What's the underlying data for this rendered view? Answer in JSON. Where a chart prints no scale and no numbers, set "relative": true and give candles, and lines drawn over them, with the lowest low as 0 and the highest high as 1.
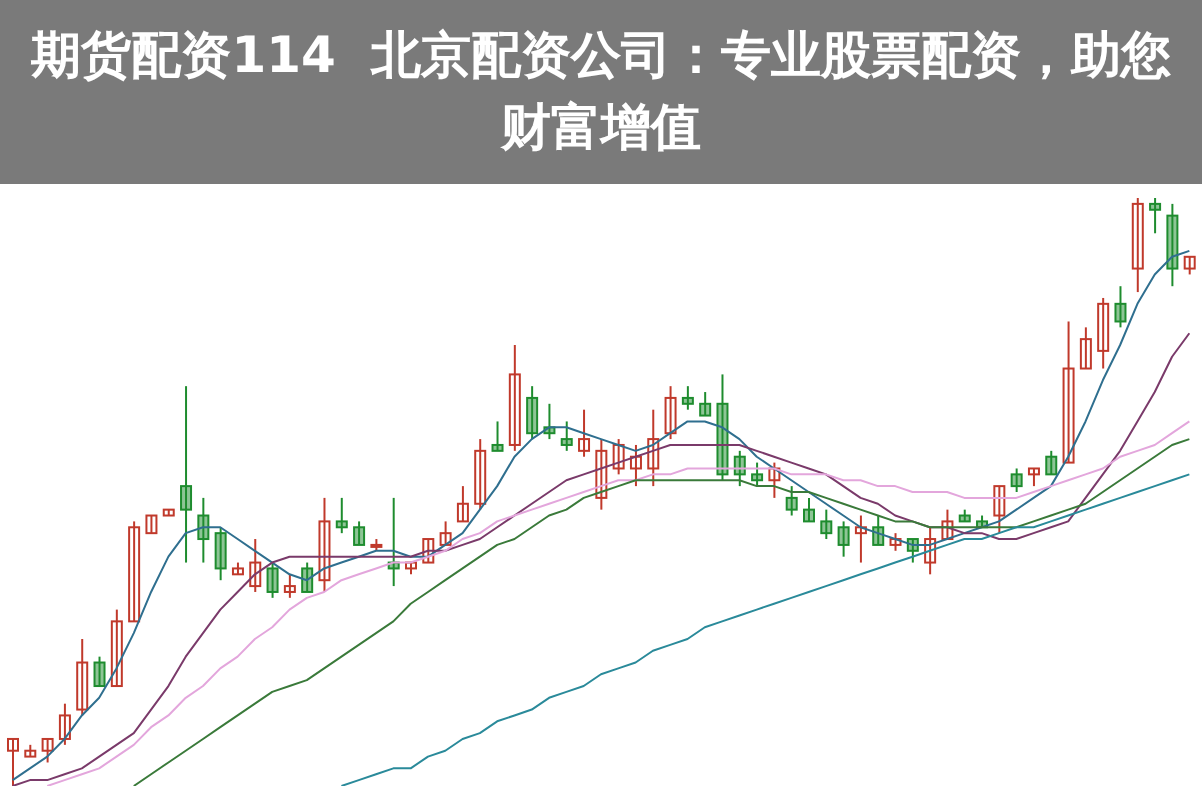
{
  "chart_data": {
    "type": "candlestick",
    "title": "期货配资114  北京配资公司：专业股票配资，助您财富增值",
    "relative": true,
    "marker": "none",
    "categories": [
      null,
      null,
      null,
      null,
      null,
      null,
      null,
      null,
      null,
      null,
      null,
      null,
      null,
      null,
      null,
      null,
      null,
      null,
      null,
      null,
      null,
      null,
      null,
      null,
      null,
      null,
      null,
      null,
      null,
      null,
      null,
      null,
      null,
      null,
      null,
      null,
      null,
      null,
      null,
      null,
      null,
      null,
      null,
      null,
      null,
      null,
      null,
      null,
      null,
      null,
      null,
      null,
      null,
      null,
      null,
      null,
      null,
      null,
      null,
      null,
      null,
      null,
      null,
      null,
      null,
      null,
      null,
      null,
      null
    ],
    "ohlc": [
      [
        0.06,
        0.08,
        0,
        0.08
      ],
      [
        0.05,
        0.07,
        0.05,
        0.06
      ],
      [
        0.06,
        0.08,
        0.04,
        0.08
      ],
      [
        0.08,
        0.14,
        0.07,
        0.12
      ],
      [
        0.13,
        0.25,
        0.12,
        0.21
      ],
      [
        0.21,
        0.22,
        0.17,
        0.17
      ],
      [
        0.17,
        0.3,
        0.17,
        0.28
      ],
      [
        0.28,
        0.45,
        0.28,
        0.44
      ],
      [
        0.43,
        0.46,
        0.43,
        0.46
      ],
      [
        0.46,
        0.47,
        0.46,
        0.47
      ],
      [
        0.51,
        0.68,
        0.38,
        0.47
      ],
      [
        0.46,
        0.49,
        0.38,
        0.42
      ],
      [
        0.43,
        0.44,
        0.35,
        0.37
      ],
      [
        0.36,
        0.38,
        0.36,
        0.37
      ],
      [
        0.34,
        0.42,
        0.33,
        0.38
      ],
      [
        0.37,
        0.38,
        0.32,
        0.33
      ],
      [
        0.33,
        0.36,
        0.32,
        0.34
      ],
      [
        0.37,
        0.38,
        0.33,
        0.33
      ],
      [
        0.35,
        0.49,
        0.33,
        0.45
      ],
      [
        0.45,
        0.49,
        0.43,
        0.44
      ],
      [
        0.44,
        0.45,
        0.41,
        0.41
      ],
      [
        0.41,
        0.42,
        0.4,
        0.41
      ],
      [
        0.38,
        0.49,
        0.34,
        0.37
      ],
      [
        0.37,
        0.38,
        0.36,
        0.38
      ],
      [
        0.38,
        0.42,
        0.38,
        0.42
      ],
      [
        0.41,
        0.45,
        0.41,
        0.43
      ],
      [
        0.45,
        0.51,
        0.45,
        0.48
      ],
      [
        0.48,
        0.59,
        0.47,
        0.57
      ],
      [
        0.58,
        0.62,
        0.57,
        0.57
      ],
      [
        0.58,
        0.75,
        0.57,
        0.7
      ],
      [
        0.66,
        0.68,
        0.59,
        0.6
      ],
      [
        0.61,
        0.65,
        0.59,
        0.6
      ],
      [
        0.59,
        0.62,
        0.57,
        0.58
      ],
      [
        0.57,
        0.64,
        0.56,
        0.59
      ],
      [
        0.49,
        0.59,
        0.47,
        0.57
      ],
      [
        0.54,
        0.59,
        0.53,
        0.58
      ],
      [
        0.54,
        0.58,
        0.51,
        0.56
      ],
      [
        0.54,
        0.64,
        0.51,
        0.59
      ],
      [
        0.6,
        0.68,
        0.59,
        0.66
      ],
      [
        0.66,
        0.68,
        0.64,
        0.65
      ],
      [
        0.65,
        0.67,
        0.63,
        0.63
      ],
      [
        0.65,
        0.7,
        0.52,
        0.53
      ],
      [
        0.56,
        0.57,
        0.51,
        0.53
      ],
      [
        0.53,
        0.55,
        0.51,
        0.52
      ],
      [
        0.52,
        0.55,
        0.49,
        0.54
      ],
      [
        0.49,
        0.51,
        0.46,
        0.47
      ],
      [
        0.47,
        0.49,
        0.45,
        0.45
      ],
      [
        0.45,
        0.47,
        0.42,
        0.43
      ],
      [
        0.44,
        0.45,
        0.39,
        0.41
      ],
      [
        0.43,
        0.46,
        0.38,
        0.44
      ],
      [
        0.44,
        0.46,
        0.41,
        0.41
      ],
      [
        0.41,
        0.43,
        0.4,
        0.42
      ],
      [
        0.42,
        0.42,
        0.38,
        0.4
      ],
      [
        0.38,
        0.44,
        0.36,
        0.42
      ],
      [
        0.42,
        0.47,
        0.42,
        0.45
      ],
      [
        0.46,
        0.47,
        0.45,
        0.45
      ],
      [
        0.45,
        0.46,
        0.44,
        0.44
      ],
      [
        0.46,
        0.51,
        0.43,
        0.51
      ],
      [
        0.53,
        0.54,
        0.5,
        0.51
      ],
      [
        0.53,
        0.54,
        0.51,
        0.54
      ],
      [
        0.56,
        0.57,
        0.53,
        0.53
      ],
      [
        0.55,
        0.79,
        0.55,
        0.71
      ],
      [
        0.71,
        0.78,
        0.71,
        0.76
      ],
      [
        0.74,
        0.83,
        0.71,
        0.82
      ],
      [
        0.82,
        0.85,
        0.78,
        0.79
      ],
      [
        0.88,
        1,
        0.84,
        0.99
      ],
      [
        0.99,
        1,
        0.94,
        0.98
      ],
      [
        0.97,
        0.99,
        0.85,
        0.88
      ],
      [
        0.88,
        0.9,
        0.87,
        0.9
      ]
    ],
    "colors": [
      "#c0392b",
      "#c0392b",
      "#c0392b",
      "#c0392b",
      "#c0392b",
      "#1e8c2e",
      "#c0392b",
      "#c0392b",
      "#c0392b",
      "#c0392b",
      "#1e8c2e",
      "#1e8c2e",
      "#1e8c2e",
      "#c0392b",
      "#c0392b",
      "#1e8c2e",
      "#c0392b",
      "#1e8c2e",
      "#c0392b",
      "#1e8c2e",
      "#1e8c2e",
      "#c0392b",
      "#1e8c2e",
      "#c0392b",
      "#c0392b",
      "#c0392b",
      "#c0392b",
      "#c0392b",
      "#1e8c2e",
      "#c0392b",
      "#1e8c2e",
      "#1e8c2e",
      "#1e8c2e",
      "#c0392b",
      "#c0392b",
      "#c0392b",
      "#c0392b",
      "#c0392b",
      "#c0392b",
      "#1e8c2e",
      "#1e8c2e",
      "#1e8c2e",
      "#1e8c2e",
      "#1e8c2e",
      "#c0392b",
      "#1e8c2e",
      "#1e8c2e",
      "#1e8c2e",
      "#1e8c2e",
      "#c0392b",
      "#1e8c2e",
      "#c0392b",
      "#1e8c2e",
      "#c0392b",
      "#c0392b",
      "#1e8c2e",
      "#1e8c2e",
      "#c0392b",
      "#1e8c2e",
      "#c0392b",
      "#1e8c2e",
      "#c0392b",
      "#c0392b",
      "#c0392b",
      "#1e8c2e",
      "#c0392b",
      "#1e8c2e",
      "#1e8c2e",
      "#c0392b"
    ],
    "series": [
      {
        "type": "line",
        "color": "#2f6f8f",
        "values": [
          0.01,
          0.03,
          0.05,
          0.08,
          0.12,
          0.15,
          0.2,
          0.26,
          0.33,
          0.39,
          0.43,
          0.44,
          0.44,
          0.42,
          0.4,
          0.38,
          0.36,
          0.35,
          0.37,
          0.38,
          0.39,
          0.4,
          0.4,
          0.39,
          0.39,
          0.41,
          0.43,
          0.47,
          0.51,
          0.56,
          0.59,
          0.61,
          0.61,
          0.6,
          0.59,
          0.58,
          0.57,
          0.58,
          0.6,
          0.62,
          0.62,
          0.61,
          0.59,
          0.56,
          0.54,
          0.52,
          0.5,
          0.48,
          0.46,
          0.44,
          0.43,
          0.42,
          0.41,
          0.41,
          0.42,
          0.43,
          0.44,
          0.45,
          0.47,
          0.49,
          0.51,
          0.56,
          0.62,
          0.69,
          0.75,
          0.82,
          0.87,
          0.9,
          0.91
        ]
      },
      {
        "type": "line",
        "color": "#7a3a6a",
        "values": [
          0,
          0.01,
          0.01,
          0.02,
          0.03,
          0.05,
          0.07,
          0.09,
          0.13,
          0.17,
          0.22,
          0.26,
          0.3,
          0.33,
          0.36,
          0.38,
          0.39,
          0.39,
          0.39,
          0.39,
          0.39,
          0.39,
          0.39,
          0.39,
          0.4,
          0.4,
          0.41,
          0.42,
          0.44,
          0.46,
          0.48,
          0.5,
          0.52,
          0.53,
          0.54,
          0.55,
          0.56,
          0.57,
          0.58,
          0.58,
          0.58,
          0.58,
          0.58,
          0.57,
          0.56,
          0.55,
          0.54,
          0.53,
          0.51,
          0.49,
          0.48,
          0.46,
          0.45,
          0.44,
          0.44,
          0.43,
          0.43,
          0.42,
          0.42,
          0.43,
          0.44,
          0.45,
          0.49,
          0.53,
          0.57,
          0.62,
          0.67,
          0.73,
          0.77
        ]
      },
      {
        "type": "line",
        "color": "#e3a6dc",
        "values": [
          null,
          null,
          0,
          0.01,
          0.02,
          0.03,
          0.05,
          0.07,
          0.1,
          0.12,
          0.15,
          0.17,
          0.2,
          0.22,
          0.25,
          0.27,
          0.3,
          0.32,
          0.33,
          0.35,
          0.36,
          0.37,
          0.38,
          0.38,
          0.39,
          0.4,
          0.42,
          0.43,
          0.45,
          0.46,
          0.47,
          0.48,
          0.49,
          0.5,
          0.51,
          0.52,
          0.52,
          0.53,
          0.53,
          0.54,
          0.54,
          0.54,
          0.54,
          0.54,
          0.54,
          0.53,
          0.53,
          0.53,
          0.52,
          0.52,
          0.51,
          0.51,
          0.5,
          0.5,
          0.5,
          0.49,
          0.49,
          0.49,
          0.49,
          0.5,
          0.51,
          0.52,
          0.53,
          0.54,
          0.56,
          0.57,
          0.58,
          0.6,
          0.62
        ]
      },
      {
        "type": "line",
        "color": "#3a7a3a",
        "values": [
          null,
          null,
          null,
          null,
          null,
          null,
          null,
          0,
          0.02,
          0.04,
          0.06,
          0.08,
          0.1,
          0.12,
          0.14,
          0.16,
          0.17,
          0.18,
          0.2,
          0.22,
          0.24,
          0.26,
          0.28,
          0.31,
          0.33,
          0.35,
          0.37,
          0.39,
          0.41,
          0.42,
          0.44,
          0.46,
          0.47,
          0.49,
          0.5,
          0.51,
          0.52,
          0.52,
          0.52,
          0.52,
          0.52,
          0.52,
          0.52,
          0.51,
          0.51,
          0.5,
          0.5,
          0.49,
          0.48,
          0.47,
          0.46,
          0.45,
          0.45,
          0.44,
          0.44,
          0.44,
          0.44,
          0.44,
          0.44,
          0.45,
          0.46,
          0.47,
          0.48,
          0.5,
          0.52,
          0.54,
          0.56,
          0.58,
          0.59
        ]
      },
      {
        "type": "line",
        "color": "#2a8a9a",
        "values": [
          null,
          null,
          null,
          null,
          null,
          null,
          null,
          null,
          null,
          null,
          null,
          null,
          null,
          null,
          null,
          null,
          null,
          null,
          null,
          0,
          0.01,
          0.02,
          0.03,
          0.03,
          0.05,
          0.06,
          0.08,
          0.09,
          0.11,
          0.12,
          0.13,
          0.15,
          0.16,
          0.17,
          0.19,
          0.2,
          0.21,
          0.23,
          0.24,
          0.25,
          0.27,
          0.28,
          0.29,
          0.3,
          0.31,
          0.32,
          0.33,
          0.34,
          0.35,
          0.36,
          0.37,
          0.38,
          0.39,
          0.4,
          0.41,
          0.42,
          0.42,
          0.43,
          0.44,
          0.44,
          0.45,
          0.46,
          0.47,
          0.48,
          0.49,
          0.5,
          0.51,
          0.52,
          0.53
        ]
      }
    ]
  }
}
